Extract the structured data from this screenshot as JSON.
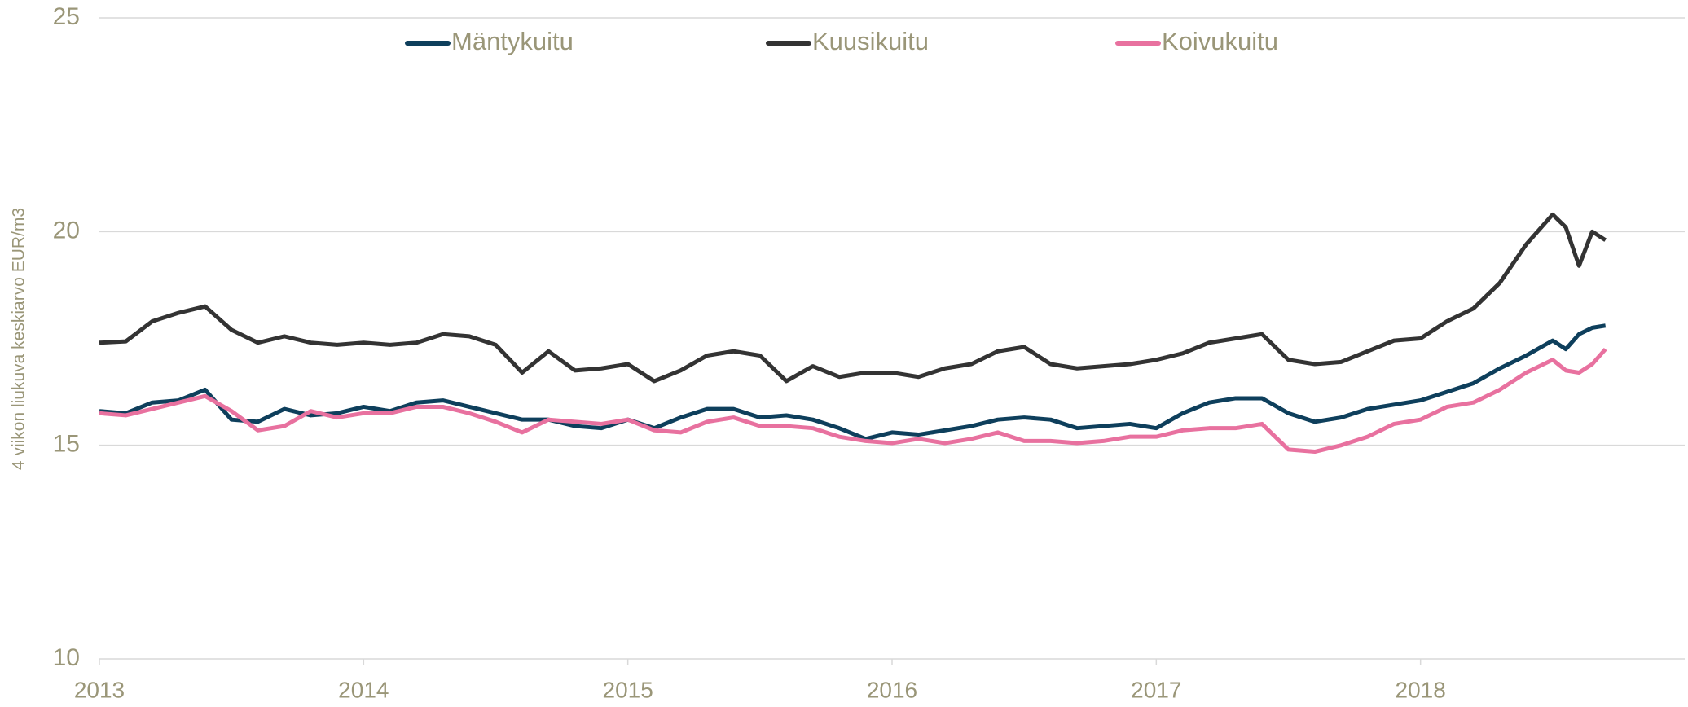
{
  "chart_data": {
    "type": "line",
    "y_label": "4 viikon liukuva keskiarvo EUR/m3",
    "x": [
      2013.0,
      2013.1,
      2013.2,
      2013.3,
      2013.4,
      2013.5,
      2013.6,
      2013.7,
      2013.8,
      2013.9,
      2014.0,
      2014.1,
      2014.2,
      2014.3,
      2014.4,
      2014.5,
      2014.6,
      2014.7,
      2014.8,
      2014.9,
      2015.0,
      2015.1,
      2015.2,
      2015.3,
      2015.4,
      2015.5,
      2015.6,
      2015.7,
      2015.8,
      2015.9,
      2016.0,
      2016.1,
      2016.2,
      2016.3,
      2016.4,
      2016.5,
      2016.6,
      2016.7,
      2016.8,
      2016.9,
      2017.0,
      2017.1,
      2017.2,
      2017.3,
      2017.4,
      2017.5,
      2017.6,
      2017.7,
      2017.8,
      2017.9,
      2018.0,
      2018.1,
      2018.2,
      2018.3,
      2018.4,
      2018.5,
      2018.55,
      2018.6,
      2018.65,
      2018.7
    ],
    "series": [
      {
        "name": "Mäntykuitu",
        "color": "#0e3f5c",
        "values": [
          15.8,
          15.75,
          16.0,
          16.05,
          16.3,
          15.6,
          15.55,
          15.85,
          15.7,
          15.75,
          15.9,
          15.8,
          16.0,
          16.05,
          15.9,
          15.75,
          15.6,
          15.6,
          15.45,
          15.4,
          15.6,
          15.4,
          15.65,
          15.85,
          15.85,
          15.65,
          15.7,
          15.6,
          15.4,
          15.15,
          15.3,
          15.25,
          15.35,
          15.45,
          15.6,
          15.65,
          15.6,
          15.4,
          15.45,
          15.5,
          15.4,
          15.75,
          16.0,
          16.1,
          16.1,
          15.75,
          15.55,
          15.65,
          15.85,
          15.95,
          16.05,
          16.25,
          16.45,
          16.8,
          17.1,
          17.45,
          17.25,
          17.6,
          17.75,
          17.8
        ]
      },
      {
        "name": "Kuusikuitu",
        "color": "#333333",
        "values": [
          17.4,
          17.43,
          17.9,
          18.1,
          18.25,
          17.7,
          17.4,
          17.55,
          17.4,
          17.35,
          17.4,
          17.35,
          17.4,
          17.6,
          17.55,
          17.35,
          16.7,
          17.2,
          16.75,
          16.8,
          16.9,
          16.5,
          16.75,
          17.1,
          17.2,
          17.1,
          16.5,
          16.85,
          16.6,
          16.7,
          16.7,
          16.6,
          16.8,
          16.9,
          17.2,
          17.3,
          16.9,
          16.8,
          16.85,
          16.9,
          17.0,
          17.15,
          17.4,
          17.5,
          17.6,
          17.0,
          16.9,
          16.95,
          17.2,
          17.45,
          17.5,
          17.9,
          18.2,
          18.8,
          19.7,
          20.4,
          20.1,
          19.2,
          20.0,
          19.8
        ]
      },
      {
        "name": "Koivukuitu",
        "color": "#e8719f",
        "values": [
          15.75,
          15.7,
          15.85,
          16.0,
          16.15,
          15.8,
          15.35,
          15.45,
          15.8,
          15.65,
          15.75,
          15.75,
          15.9,
          15.9,
          15.75,
          15.55,
          15.3,
          15.6,
          15.55,
          15.5,
          15.6,
          15.35,
          15.3,
          15.55,
          15.65,
          15.45,
          15.45,
          15.4,
          15.2,
          15.1,
          15.05,
          15.15,
          15.05,
          15.15,
          15.3,
          15.1,
          15.1,
          15.05,
          15.1,
          15.2,
          15.2,
          15.35,
          15.4,
          15.4,
          15.5,
          14.9,
          14.85,
          15.0,
          15.2,
          15.5,
          15.6,
          15.9,
          16.0,
          16.3,
          16.7,
          17.0,
          16.75,
          16.7,
          16.9,
          17.25
        ]
      }
    ],
    "xlim": [
      2013,
      2019
    ],
    "xticks": [
      2013,
      2014,
      2015,
      2016,
      2017,
      2018
    ],
    "ylim": [
      10,
      25
    ],
    "yticks": [
      10,
      15,
      20,
      25
    ],
    "grid": true,
    "legend": "top"
  }
}
